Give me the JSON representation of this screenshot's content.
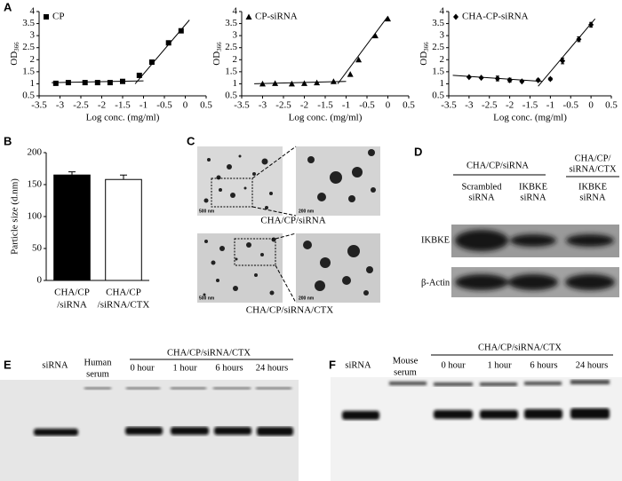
{
  "chart_data": [
    {
      "type": "scatter",
      "xlabel": "Log conc. (mg/ml)",
      "ylabel": "OD",
      "ylabel_subscript": "366",
      "xlim": [
        -3.5,
        0.5
      ],
      "xticks": [
        -3.5,
        -3,
        -2.5,
        -2,
        -1.5,
        -1,
        -0.5,
        0,
        0.5
      ],
      "ylim": [
        0.5,
        4
      ],
      "yticks": [
        0.5,
        1,
        1.5,
        2,
        2.5,
        3,
        3.5,
        4
      ],
      "series": [
        {
          "name": "CP",
          "marker": "square",
          "color": "#000000",
          "x": [
            -3.1,
            -2.8,
            -2.4,
            -2.1,
            -1.8,
            -1.5,
            -1.1,
            -0.8,
            -0.4,
            -0.1
          ],
          "values": [
            1.02,
            1.05,
            1.05,
            1.05,
            1.05,
            1.1,
            1.35,
            1.9,
            2.7,
            3.2
          ]
        }
      ],
      "fit_lines": [
        {
          "x": [
            -3.2,
            -1.0
          ],
          "y": [
            1.05,
            1.12
          ]
        },
        {
          "x": [
            -1.2,
            0.1
          ],
          "y": [
            1.0,
            3.65
          ]
        }
      ]
    },
    {
      "type": "scatter",
      "xlabel": "Log conc. (mg/ml)",
      "ylabel": "OD",
      "ylabel_subscript": "366",
      "xlim": [
        -3.5,
        0.5
      ],
      "xticks": [
        -3.5,
        -3,
        -2.5,
        -2,
        -1.5,
        -1,
        -0.5,
        0,
        0.5
      ],
      "ylim": [
        0.5,
        4
      ],
      "yticks": [
        0.5,
        1,
        1.5,
        2,
        2.5,
        3,
        3.5,
        4
      ],
      "series": [
        {
          "name": "CP-siRNA",
          "marker": "triangle",
          "color": "#000000",
          "x": [
            -3.0,
            -2.7,
            -2.3,
            -2.0,
            -1.7,
            -1.3,
            -0.9,
            -0.7,
            -0.3,
            0
          ],
          "values": [
            1.0,
            1.02,
            1.0,
            1.02,
            1.05,
            1.1,
            1.4,
            2.0,
            3.0,
            3.7
          ]
        }
      ],
      "fit_lines": [
        {
          "x": [
            -3.2,
            -1.0
          ],
          "y": [
            1.0,
            1.1
          ]
        },
        {
          "x": [
            -1.2,
            0.0
          ],
          "y": [
            1.0,
            3.8
          ]
        }
      ]
    },
    {
      "type": "scatter",
      "xlabel": "Log conc. (mg/ml)",
      "ylabel": "OD",
      "ylabel_subscript": "366",
      "xlim": [
        -3.5,
        0.5
      ],
      "xticks": [
        -3.5,
        -3,
        -2.5,
        -2,
        -1.5,
        -1,
        -0.5,
        0,
        0.5
      ],
      "ylim": [
        0.5,
        4
      ],
      "yticks": [
        0.5,
        1,
        1.5,
        2,
        2.5,
        3,
        3.5,
        4
      ],
      "series": [
        {
          "name": "CHA-CP-siRNA",
          "marker": "diamond",
          "color": "#000000",
          "x": [
            -3.0,
            -2.7,
            -2.3,
            -2.0,
            -1.7,
            -1.3,
            -1.0,
            -0.7,
            -0.3,
            0
          ],
          "values": [
            1.28,
            1.25,
            1.22,
            1.15,
            1.1,
            1.15,
            1.2,
            1.95,
            2.85,
            3.45
          ],
          "errors": [
            0.03,
            0.03,
            0.1,
            0.08,
            0.03,
            0.05,
            0.05,
            0.12,
            0.1,
            0.1
          ]
        }
      ],
      "fit_lines": [
        {
          "x": [
            -3.4,
            -1.2
          ],
          "y": [
            1.35,
            1.1
          ]
        },
        {
          "x": [
            -1.3,
            0.1
          ],
          "y": [
            0.9,
            3.7
          ]
        }
      ]
    },
    {
      "type": "bar",
      "ylabel": "Particle size (d.nm)",
      "categories": [
        [
          "CHA/CP",
          "/siRNA"
        ],
        [
          "CHA/CP",
          "/siRNA/CTX"
        ]
      ],
      "values": [
        165,
        158
      ],
      "errors": [
        5,
        7
      ],
      "colors": [
        "#000000",
        "#ffffff"
      ],
      "ylim": [
        0,
        200
      ],
      "yticks": [
        0,
        50,
        100,
        150,
        200
      ]
    }
  ],
  "panel_labels": [
    "A",
    "B",
    "C",
    "D",
    "E",
    "F"
  ],
  "panel_c": {
    "captions": [
      "CHA/CP/siRNA",
      "CHA/CP/siRNA/CTX"
    ],
    "scale_bars": [
      "500 nm",
      "200 nm",
      "500 nm",
      "200 nm"
    ]
  },
  "panel_d": {
    "groups": [
      "CHA/CP/siRNA",
      [
        "CHA/CP/",
        "siRNA/CTX"
      ]
    ],
    "lanes": [
      [
        "Scrambled",
        "siRNA"
      ],
      [
        "IKBKE",
        "siRNA"
      ],
      [
        "IKBKE",
        "siRNA"
      ]
    ],
    "rows": [
      "IKBKE",
      "β-Actin"
    ]
  },
  "panel_e": {
    "lanes": [
      "siRNA",
      [
        "Human",
        "serum"
      ],
      "0 hour",
      "1 hour",
      "6 hours",
      "24 hours"
    ],
    "group": "CHA/CP/siRNA/CTX"
  },
  "panel_f": {
    "lanes": [
      "siRNA",
      [
        "Mouse",
        "serum"
      ],
      "0 hour",
      "1 hour",
      "6 hours",
      "24 hours"
    ],
    "group": "CHA/CP/siRNA/CTX"
  }
}
